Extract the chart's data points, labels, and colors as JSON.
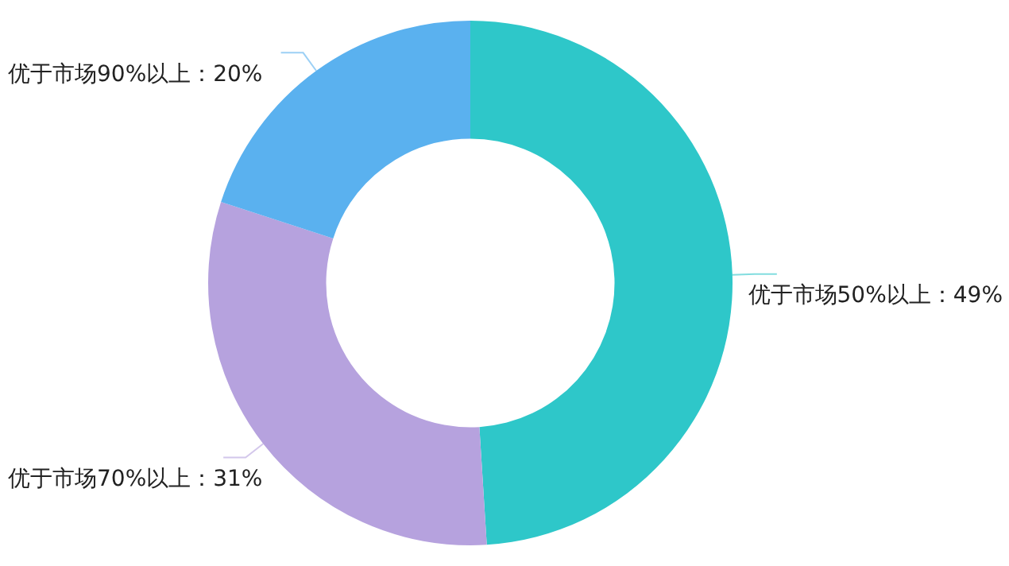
{
  "chart_data": {
    "type": "donut",
    "categories": [
      "优于市场50%以上",
      "优于市场70%以上",
      "优于市场90%以上"
    ],
    "values": [
      49,
      31,
      20
    ],
    "colors": [
      "#2ec7c9",
      "#b6a2de",
      "#5ab1ef"
    ],
    "value_labels": [
      "：49%",
      "：31%",
      "：20%"
    ]
  }
}
